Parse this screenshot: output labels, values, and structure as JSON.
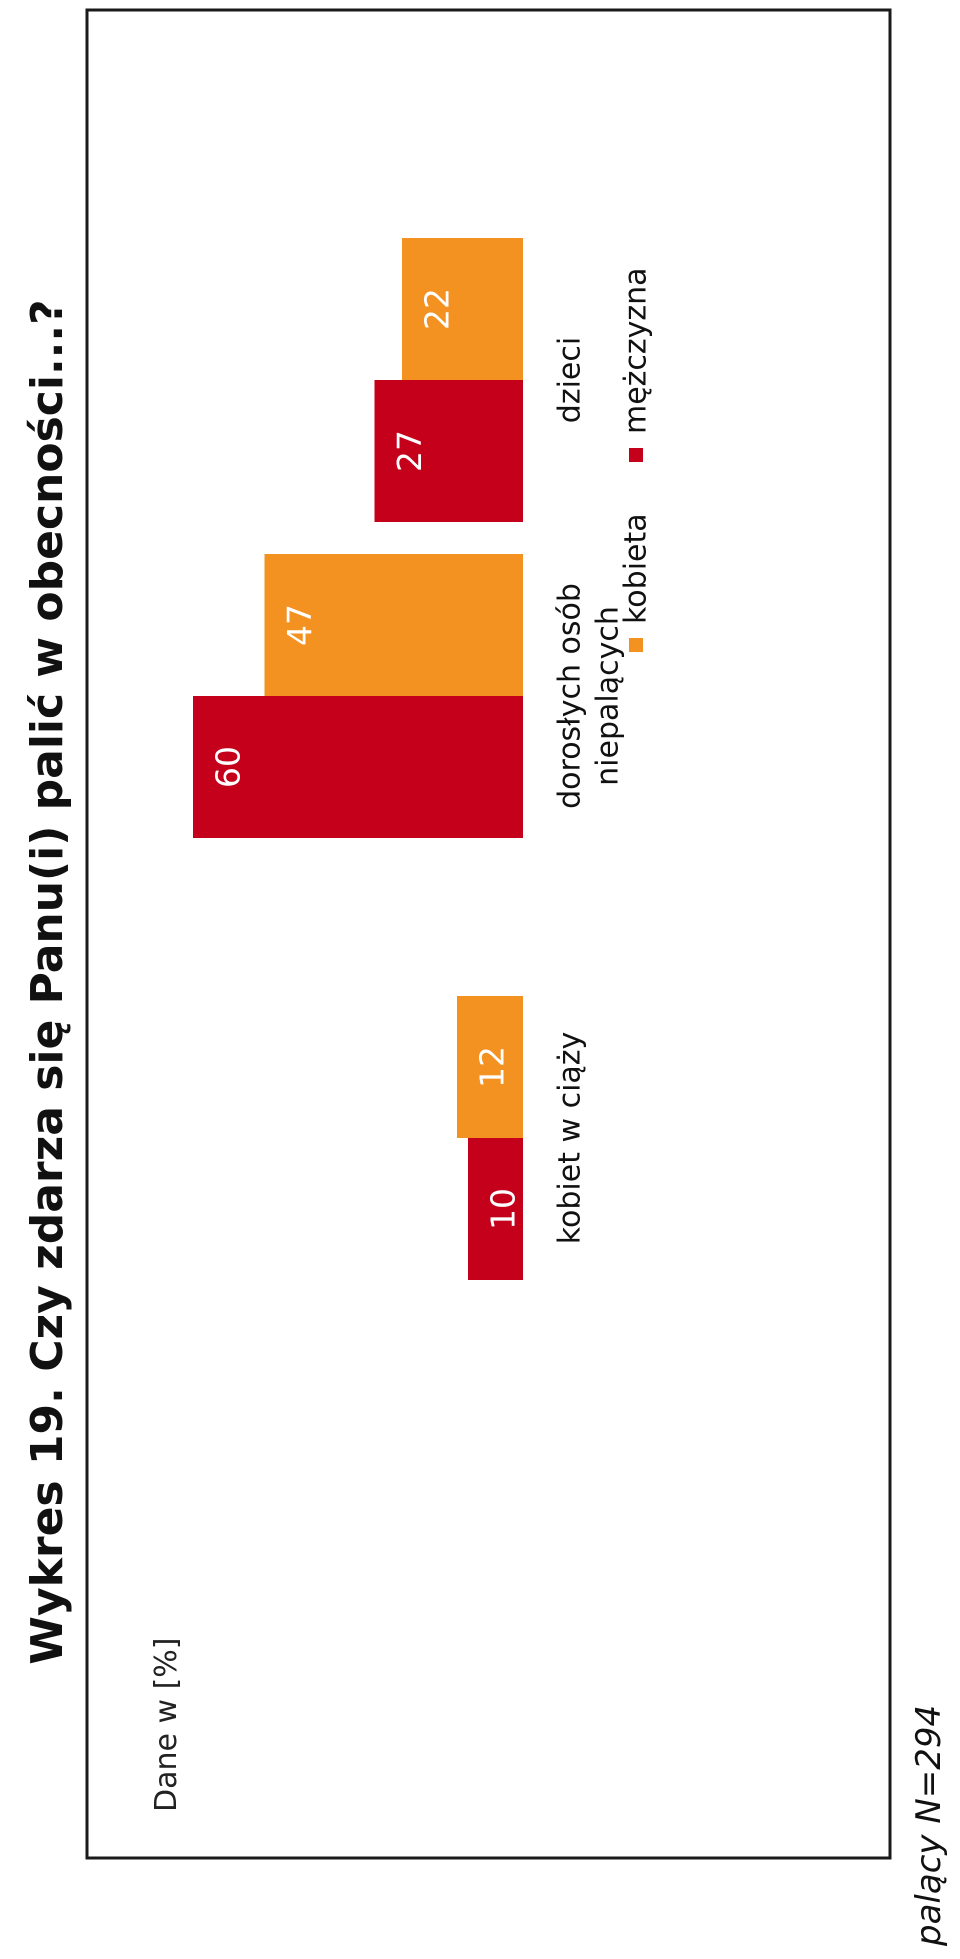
{
  "title": "Wykres 19. Czy zdarza się Panu(i) palić w obecności...?",
  "note": "palący N=294",
  "chart_data": {
    "type": "bar",
    "subtitle": "Dane w [%]",
    "categories": [
      [
        "kobiet w ciąży"
      ],
      [
        "dorosłych osób",
        "niepalących"
      ],
      [
        "dzieci"
      ]
    ],
    "series": [
      {
        "name": "mężczyzna",
        "color": "#c4001a",
        "values": [
          10,
          60,
          27
        ]
      },
      {
        "name": "kobieta",
        "color": "#f39121",
        "values": [
          12,
          47,
          22
        ]
      }
    ],
    "legend_order": [
      "kobieta",
      "mężczyzna"
    ],
    "legend_position": "bottom",
    "ylim": [
      0,
      60
    ],
    "grid": false,
    "data_labels": true
  }
}
